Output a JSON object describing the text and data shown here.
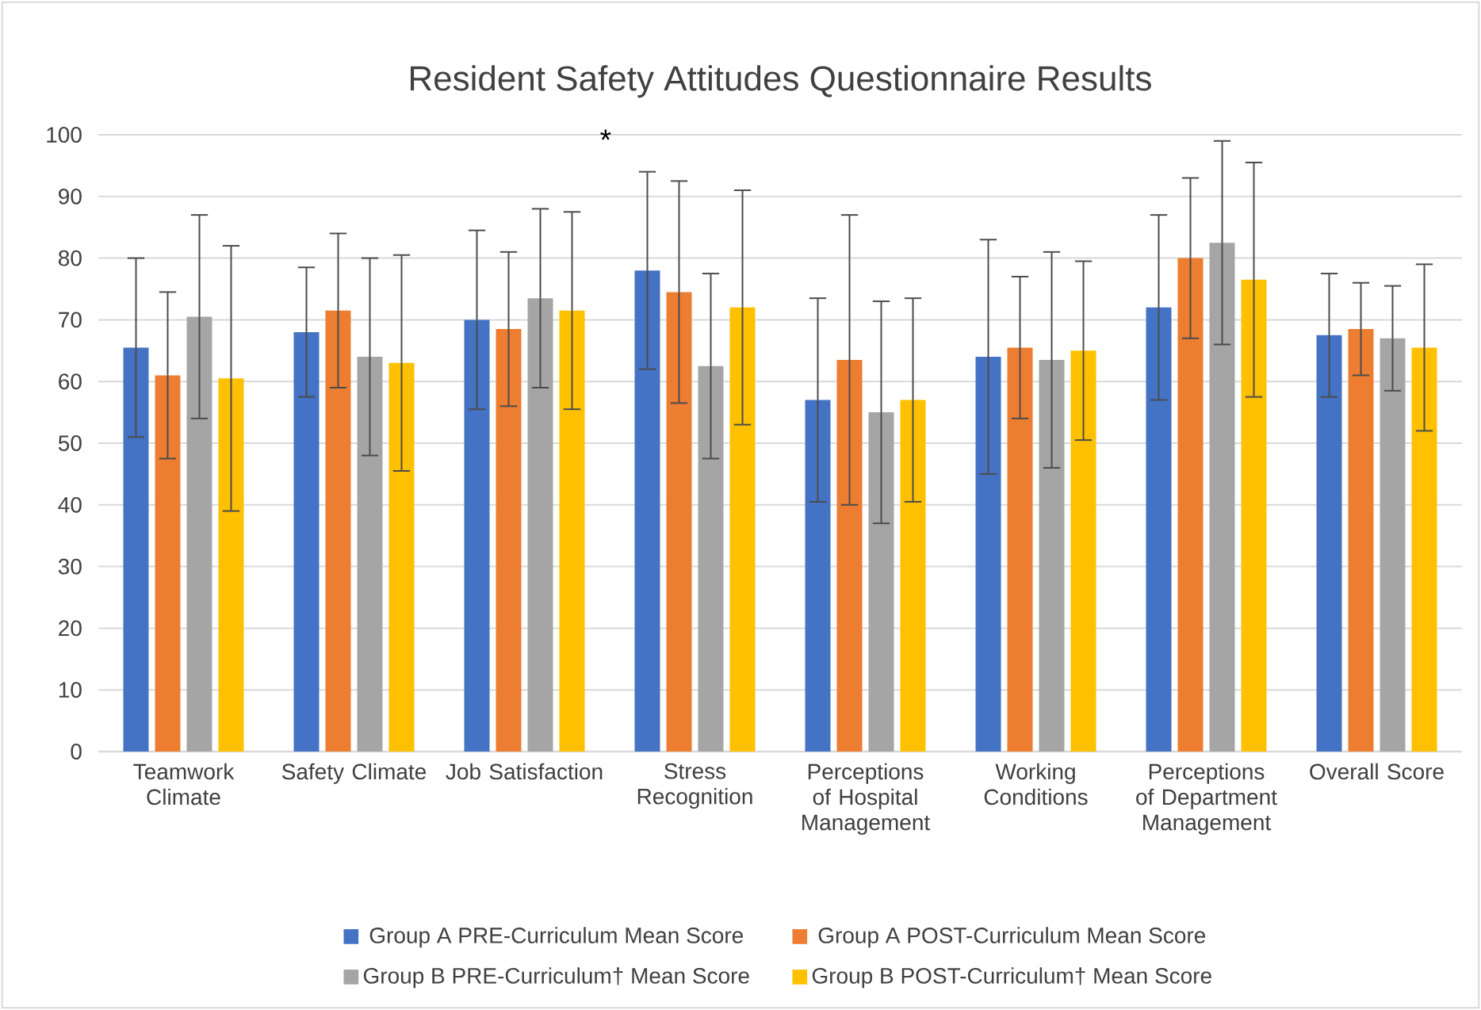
{
  "chart_data": {
    "type": "bar",
    "title": "Resident Safety Attitudes Questionnaire Results",
    "categories": [
      "Teamwork Climate",
      "Safety Climate",
      "Job Satisfaction",
      "Stress Recognition",
      "Perceptions of Hospital Management",
      "Working Conditions",
      "Perceptions of Department Management",
      "Overall Score"
    ],
    "series": [
      {
        "name": "Group A PRE-Curriculum Mean Score",
        "color": "#4472c4",
        "values": [
          65.5,
          68,
          70,
          78,
          57,
          64,
          72,
          67.5
        ],
        "errors": [
          14.5,
          10.5,
          14.5,
          16,
          16.5,
          19,
          15,
          10
        ]
      },
      {
        "name": "Group A POST-Curriculum Mean Score",
        "color": "#ed7d31",
        "values": [
          61,
          71.5,
          68.5,
          74.5,
          63.5,
          65.5,
          80,
          68.5
        ],
        "errors": [
          13.5,
          12.5,
          12.5,
          18,
          23.5,
          11.5,
          13,
          7.5
        ]
      },
      {
        "name": "Group B PRE-Curriculum† Mean Score",
        "color": "#a5a5a5",
        "values": [
          70.5,
          64,
          73.5,
          62.5,
          55,
          63.5,
          82.5,
          67
        ],
        "errors": [
          16.5,
          16,
          14.5,
          15,
          18,
          17.5,
          16.5,
          8.5
        ]
      },
      {
        "name": "Group B POST-Curriculum† Mean Score",
        "color": "#ffc000",
        "values": [
          60.5,
          63,
          71.5,
          72,
          57,
          65,
          76.5,
          65.5
        ],
        "errors": [
          21.5,
          17.5,
          16,
          19,
          16.5,
          14.5,
          19,
          13.5
        ]
      }
    ],
    "ylim": [
      0,
      100
    ],
    "yticks": [
      0,
      10,
      20,
      30,
      40,
      50,
      60,
      70,
      80,
      90,
      100
    ],
    "grid": "y",
    "legend": "bottom",
    "annotations": [
      "*"
    ]
  }
}
